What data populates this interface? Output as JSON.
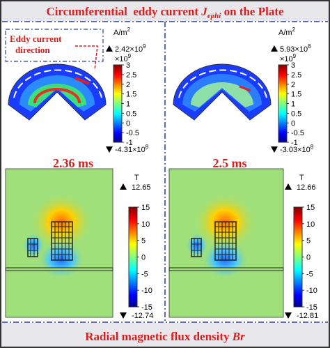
{
  "header": {
    "title": {
      "text": "Circumferential  eddy current ",
      "symbol": "J",
      "subscript": "ephi",
      "suffix": " on the Plate"
    }
  },
  "annotation": {
    "lines": [
      "Eddy current",
      "direction"
    ]
  },
  "panels": [
    {
      "time": "2.36 ms",
      "current_colorbar": {
        "unit": "A/m",
        "unit_exp": "2",
        "max_label": {
          "base": "2.42×10",
          "exp": "9"
        },
        "multiplier": {
          "base": "×10",
          "exp": "9"
        },
        "ticks": [
          3,
          2.5,
          2,
          1.5,
          1,
          0.5,
          0,
          -0.5,
          -1
        ],
        "min_label": {
          "base": "-4.31×10",
          "exp": "8"
        }
      },
      "field_colorbar": {
        "unit": "T",
        "max_label": "12.65",
        "ticks": [
          15,
          10,
          5,
          0,
          -5,
          -10,
          -15
        ],
        "min_label": "-12.74"
      }
    },
    {
      "time": "2.5 ms",
      "current_colorbar": {
        "unit": "A/m",
        "unit_exp": "2",
        "max_label": {
          "base": "5.93×10",
          "exp": "8"
        },
        "multiplier": {
          "base": "×10",
          "exp": "9"
        },
        "ticks": [
          3,
          2.5,
          2,
          1.5,
          1,
          0.5,
          0,
          -0.5,
          -1
        ],
        "min_label": {
          "base": "-3.03×10",
          "exp": "8"
        }
      },
      "field_colorbar": {
        "unit": "T",
        "max_label": "12.66",
        "ticks": [
          15,
          10,
          5,
          0,
          -5,
          -10,
          -15
        ],
        "min_label": "-12.81"
      }
    }
  ],
  "footer": {
    "title": {
      "text": "Radial magnetic flux density ",
      "symbol": "Br"
    }
  }
}
